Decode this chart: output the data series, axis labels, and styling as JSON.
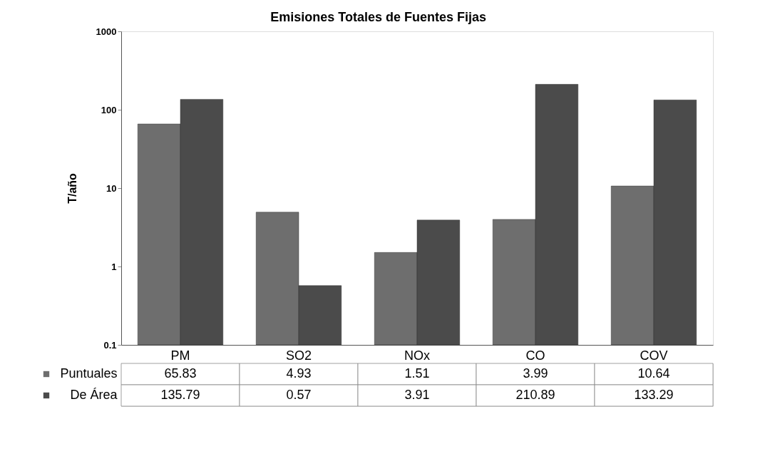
{
  "chart_data": {
    "type": "bar",
    "title": "Emisiones Totales de Fuentes Fijas",
    "ylabel": "T/año",
    "categories": [
      "PM",
      "SO2",
      "NOx",
      "CO",
      "COV"
    ],
    "series": [
      {
        "name": "Puntuales",
        "color": "#6e6e6e",
        "values": [
          65.83,
          4.93,
          1.51,
          3.99,
          10.64
        ]
      },
      {
        "name": "De Área",
        "color": "#4b4b4b",
        "values": [
          135.79,
          0.57,
          3.91,
          210.89,
          133.29
        ]
      }
    ],
    "log": true,
    "ylim": [
      0.1,
      1000
    ],
    "yticks": [
      0.1,
      1,
      10,
      100,
      1000
    ],
    "grid": false,
    "data_labels": true,
    "legend": "bottom"
  }
}
